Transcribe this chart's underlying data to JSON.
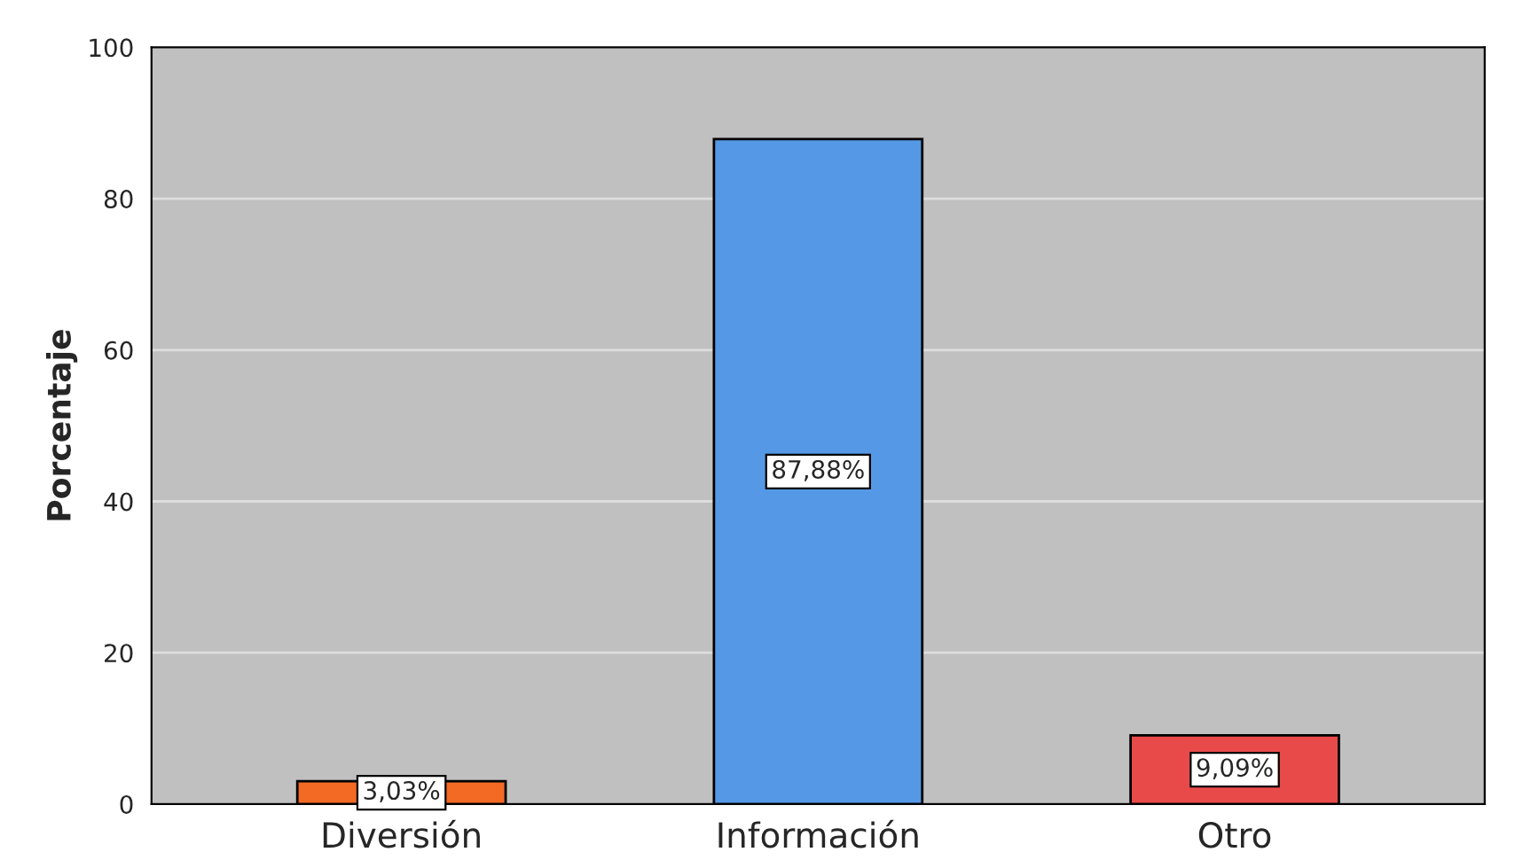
{
  "chart_data": {
    "type": "bar",
    "ylabel": "Porcentaje",
    "categories": [
      "Diversión",
      "Información",
      "Otro"
    ],
    "values": [
      3.03,
      87.88,
      9.09
    ],
    "value_labels": [
      "3,03%",
      "87,88%",
      "9,09%"
    ],
    "colors": [
      "#f26a24",
      "#5599e6",
      "#e84a4a"
    ],
    "ylim": [
      0,
      100
    ],
    "yticks": [
      0,
      20,
      40,
      60,
      80,
      100
    ],
    "grid": "y"
  }
}
